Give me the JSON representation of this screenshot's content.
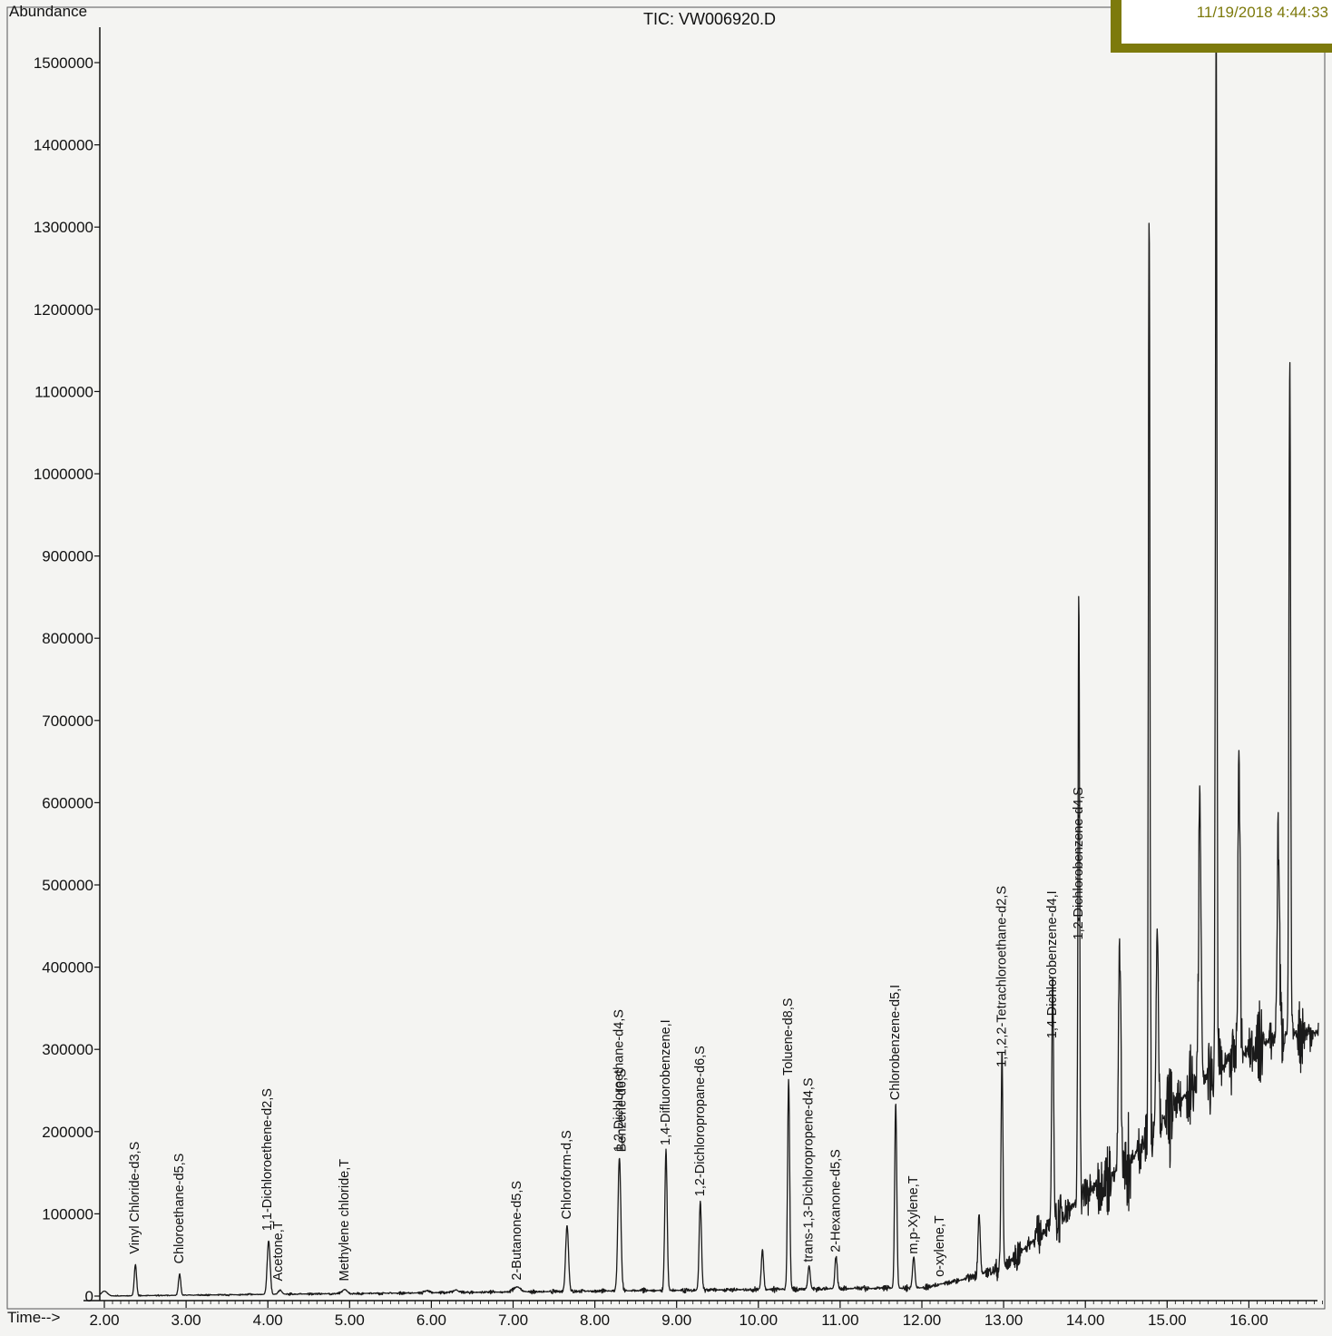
{
  "chart_data": {
    "type": "line",
    "title": "TIC: VW006920.D",
    "ylabel": "Abundance",
    "xlabel": "Time-->",
    "xlim": [
      1.95,
      18.9
    ],
    "ylim": [
      0,
      1550000
    ],
    "x_ticks": [
      "2.00",
      "3.00",
      "4.00",
      "5.00",
      "6.00",
      "7.00",
      "8.00",
      "9.00",
      "10.00",
      "11.00",
      "12.00",
      "13.00",
      "14.00",
      "15.00",
      "16.00"
    ],
    "y_ticks": [
      "0",
      "100000",
      "200000",
      "300000",
      "400000",
      "500000",
      "600000",
      "700000",
      "800000",
      "900000",
      "1000000",
      "1100000",
      "1200000",
      "1300000",
      "1400000",
      "1500000"
    ],
    "grid": false,
    "series": [
      {
        "peaks": [
          [
            2.0,
            6000,
            0.05
          ],
          [
            2.38,
            38000,
            0.02
          ],
          [
            2.92,
            26000,
            0.02
          ],
          [
            4.01,
            66000,
            0.025
          ],
          [
            4.15,
            5000,
            0.03
          ],
          [
            4.94,
            5000,
            0.04
          ],
          [
            5.95,
            2500,
            0.04
          ],
          [
            6.3,
            3000,
            0.04
          ],
          [
            7.05,
            6000,
            0.06
          ],
          [
            7.66,
            80000,
            0.025
          ],
          [
            8.3,
            162000,
            0.025
          ],
          [
            8.87,
            170000,
            0.02
          ],
          [
            9.29,
            108000,
            0.02
          ],
          [
            10.05,
            48000,
            0.02
          ],
          [
            10.37,
            255000,
            0.018
          ],
          [
            10.62,
            28000,
            0.02
          ],
          [
            10.95,
            40000,
            0.02
          ],
          [
            11.68,
            225000,
            0.018
          ],
          [
            11.9,
            38000,
            0.02
          ],
          [
            12.7,
            72000,
            0.02
          ],
          [
            12.98,
            265000,
            0.016
          ],
          [
            13.6,
            300000,
            0.016
          ],
          [
            13.92,
            750000,
            0.014
          ],
          [
            14.42,
            280000,
            0.02
          ],
          [
            14.78,
            1150000,
            0.013
          ],
          [
            14.88,
            250000,
            0.02
          ],
          [
            15.4,
            360000,
            0.02
          ],
          [
            15.6,
            1280000,
            0.013
          ],
          [
            15.88,
            370000,
            0.018
          ],
          [
            16.5,
            820000,
            0.014
          ],
          [
            16.36,
            250000,
            0.02
          ]
        ],
        "baseline": [
          [
            1.95,
            0
          ],
          [
            12.0,
            10000
          ],
          [
            12.5,
            20000
          ],
          [
            13.0,
            35000
          ],
          [
            13.5,
            80000
          ],
          [
            14.0,
            125000
          ],
          [
            14.5,
            160000
          ],
          [
            15.0,
            220000
          ],
          [
            15.5,
            270000
          ],
          [
            16.0,
            300000
          ],
          [
            16.5,
            320000
          ],
          [
            16.8,
            320000
          ]
        ],
        "noise_amplitude": [
          [
            1.95,
            800
          ],
          [
            12.5,
            5000
          ],
          [
            13.5,
            30000
          ],
          [
            14.5,
            70000
          ],
          [
            15.5,
            70000
          ],
          [
            16.8,
            50000
          ]
        ]
      }
    ],
    "annotations": [
      {
        "text": "Vinyl Chloride-d3,S",
        "x": 2.38,
        "y": 38000
      },
      {
        "text": "Chloroethane-d5,S",
        "x": 2.92,
        "y": 26000
      },
      {
        "text": "1,1-Dichloroethene-d2,S",
        "x": 4.0,
        "y": 66000
      },
      {
        "text": "Acetone,T",
        "x": 4.13,
        "y": 5000
      },
      {
        "text": "Methylene chloride,T",
        "x": 4.94,
        "y": 5000
      },
      {
        "text": "2-Butanone-d5,S",
        "x": 7.05,
        "y": 6000
      },
      {
        "text": "Chloroform-d,S",
        "x": 7.66,
        "y": 80000
      },
      {
        "text": "1,2-Dichloroethane-d4,S",
        "x": 8.3,
        "y": 162000
      },
      {
        "text": "Benzene-d6,S",
        "x": 8.33,
        "y": 162000
      },
      {
        "text": "1,4-Difluorobenzene,I",
        "x": 8.87,
        "y": 170000
      },
      {
        "text": "1,2-Dichloropropane-d6,S",
        "x": 9.29,
        "y": 108000
      },
      {
        "text": "Toluene-d8,S",
        "x": 10.37,
        "y": 255000
      },
      {
        "text": "trans-1,3-Dichloropropene-d4,S",
        "x": 10.62,
        "y": 28000
      },
      {
        "text": "2-Hexanone-d5,S",
        "x": 10.95,
        "y": 40000
      },
      {
        "text": "Chlorobenzene-d5,I",
        "x": 11.68,
        "y": 225000
      },
      {
        "text": "m,p-Xylene,T",
        "x": 11.9,
        "y": 38000
      },
      {
        "text": "o-xylene,T",
        "x": 12.22,
        "y": 10000
      },
      {
        "text": "1,1,2,2-Tetrachloroethane-d2,S",
        "x": 12.98,
        "y": 265000
      },
      {
        "text": "1,4-Dichlorobenzene-d4,I",
        "x": 13.6,
        "y": 300000
      },
      {
        "text": "1,2-Dichlorobenzene-d4,S",
        "x": 13.92,
        "y": 420000
      }
    ]
  },
  "stamp": {
    "datetime": "11/19/2018 4:44:33"
  }
}
